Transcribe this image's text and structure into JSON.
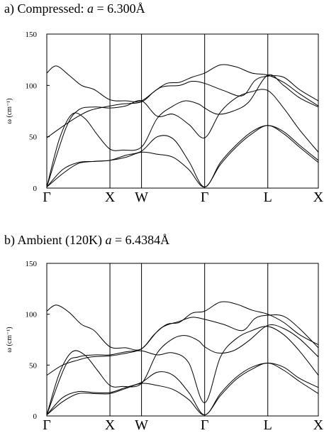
{
  "panels": [
    {
      "title_prefix": "a) Compressed: ",
      "title_var": "a",
      "title_suffix": " = 6.300Å"
    },
    {
      "title_prefix": "b) Ambient (120K) ",
      "title_var": "a",
      "title_suffix": " = 6.4384Å"
    }
  ],
  "chart_data": [
    {
      "type": "line",
      "title": "a) Compressed: a = 6.300Å",
      "xlabel": "",
      "ylabel": "ω (cm⁻¹)",
      "ylim": [
        0,
        150
      ],
      "yticks": [
        0,
        50,
        100,
        150
      ],
      "x_path_positions": [
        0,
        1,
        1.5,
        2.5,
        3.5,
        4.3
      ],
      "high_symmetry_points": [
        "Γ",
        "X",
        "W",
        "Γ",
        "L",
        "X"
      ],
      "series": [
        {
          "x": [
            0,
            0.15,
            0.35,
            0.55,
            0.75,
            1,
            1.25,
            1.5,
            1.8,
            2.1,
            2.3,
            2.5,
            2.8,
            3.1,
            3.3,
            3.5,
            3.75,
            4.0,
            4.3
          ],
          "values": [
            112,
            119,
            110,
            100,
            96,
            86,
            85,
            85,
            98,
            100,
            104,
            102,
            95,
            90,
            105,
            109,
            108,
            96,
            85
          ]
        },
        {
          "x": [
            0,
            0.25,
            0.5,
            0.7,
            1,
            1.2,
            1.5,
            1.7,
            1.9,
            2.1,
            2.3,
            2.5,
            2.75,
            3.0,
            3.25,
            3.5,
            3.75,
            4.0,
            4.3
          ],
          "values": [
            49,
            60,
            70,
            76,
            80,
            82,
            84,
            94,
            102,
            103,
            108,
            112,
            120,
            118,
            112,
            110,
            103,
            92,
            80
          ]
        },
        {
          "x": [
            0,
            0.2,
            0.4,
            0.6,
            0.8,
            1,
            1.2,
            1.5,
            1.75,
            2.0,
            2.2,
            2.4,
            2.5,
            2.7,
            2.95,
            3.2,
            3.5,
            3.75,
            4.0,
            4.3
          ],
          "values": [
            1,
            48,
            72,
            68,
            52,
            38,
            37,
            40,
            68,
            80,
            85,
            82,
            78,
            72,
            75,
            84,
            110,
            100,
            88,
            79
          ]
        },
        {
          "x": [
            0,
            0.3,
            0.5,
            0.75,
            1,
            1.25,
            1.5,
            1.75,
            2.0,
            2.25,
            2.5,
            2.75,
            3.0,
            3.25,
            3.5,
            3.75,
            4.0,
            4.3
          ],
          "values": [
            1,
            58,
            76,
            79,
            78,
            80,
            85,
            70,
            72,
            62,
            49,
            74,
            88,
            94,
            95,
            78,
            57,
            35
          ]
        },
        {
          "x": [
            0,
            0.25,
            0.5,
            0.75,
            1,
            1.25,
            1.5,
            1.75,
            2.0,
            2.25,
            2.5,
            2.75,
            3.0,
            3.25,
            3.5,
            3.75,
            4.0,
            4.3
          ],
          "values": [
            1,
            18,
            25,
            26,
            27,
            32,
            36,
            50,
            48,
            26,
            1,
            25,
            42,
            55,
            61,
            55,
            42,
            27
          ]
        },
        {
          "x": [
            0,
            0.25,
            0.5,
            0.75,
            1,
            1.25,
            1.5,
            1.75,
            2.0,
            2.25,
            2.5,
            2.75,
            3.0,
            3.25,
            3.5,
            3.75,
            4.0,
            4.3
          ],
          "values": [
            1,
            14,
            24,
            26,
            27,
            30,
            35,
            33,
            30,
            18,
            1,
            23,
            40,
            53,
            61,
            53,
            40,
            25
          ]
        }
      ]
    },
    {
      "type": "line",
      "title": "b) Ambient (120K) a = 6.4384Å",
      "xlabel": "",
      "ylabel": "ω (cm⁻¹)",
      "ylim": [
        0,
        150
      ],
      "yticks": [
        0,
        50,
        100,
        150
      ],
      "x_path_positions": [
        0,
        1,
        1.5,
        2.5,
        3.5,
        4.3
      ],
      "high_symmetry_points": [
        "Γ",
        "X",
        "W",
        "Γ",
        "L",
        "X"
      ],
      "series": [
        {
          "x": [
            0,
            0.15,
            0.35,
            0.55,
            0.75,
            1,
            1.25,
            1.5,
            1.8,
            2.1,
            2.3,
            2.5,
            2.8,
            3.1,
            3.3,
            3.5,
            3.75,
            4.0,
            4.3
          ],
          "values": [
            103,
            109,
            102,
            90,
            84,
            68,
            67,
            66,
            86,
            93,
            97,
            95,
            90,
            84,
            96,
            99,
            98,
            86,
            67
          ]
        },
        {
          "x": [
            0,
            0.25,
            0.5,
            0.7,
            1,
            1.2,
            1.5,
            1.7,
            1.9,
            2.1,
            2.3,
            2.5,
            2.75,
            3.0,
            3.25,
            3.5,
            3.75,
            4.0,
            4.3
          ],
          "values": [
            40,
            50,
            55,
            58,
            59,
            61,
            66,
            80,
            90,
            92,
            101,
            103,
            112,
            110,
            104,
            100,
            92,
            80,
            70
          ]
        },
        {
          "x": [
            0,
            0.2,
            0.4,
            0.6,
            0.8,
            1,
            1.2,
            1.5,
            1.75,
            2.0,
            2.2,
            2.4,
            2.5,
            2.7,
            2.95,
            3.2,
            3.5,
            3.75,
            4.0,
            4.3
          ],
          "values": [
            1,
            42,
            63,
            60,
            45,
            30,
            29,
            32,
            62,
            76,
            79,
            74,
            68,
            62,
            64,
            74,
            89,
            86,
            76,
            58
          ]
        },
        {
          "x": [
            0,
            0.3,
            0.5,
            0.75,
            1,
            1.25,
            1.5,
            1.75,
            2.0,
            2.25,
            2.5,
            2.75,
            3.0,
            3.25,
            3.5,
            3.75,
            4.0,
            4.3
          ],
          "values": [
            1,
            50,
            58,
            60,
            60,
            63,
            64,
            60,
            62,
            52,
            13,
            58,
            76,
            84,
            88,
            80,
            64,
            40
          ]
        },
        {
          "x": [
            0,
            0.25,
            0.5,
            0.75,
            1,
            1.25,
            1.5,
            1.75,
            2.0,
            2.25,
            2.5,
            2.75,
            3.0,
            3.25,
            3.5,
            3.75,
            4.0,
            4.3
          ],
          "values": [
            1,
            18,
            24,
            23,
            23,
            28,
            33,
            43,
            40,
            23,
            1,
            22,
            38,
            48,
            52,
            48,
            37,
            28
          ]
        },
        {
          "x": [
            0,
            0.25,
            0.5,
            0.75,
            1,
            1.25,
            1.5,
            1.75,
            2.0,
            2.25,
            2.5,
            2.75,
            3.0,
            3.25,
            3.5,
            3.75,
            4.0,
            4.3
          ],
          "values": [
            1,
            14,
            22,
            22,
            22,
            27,
            32,
            30,
            26,
            16,
            1,
            20,
            36,
            46,
            52,
            45,
            34,
            22
          ]
        }
      ]
    }
  ]
}
